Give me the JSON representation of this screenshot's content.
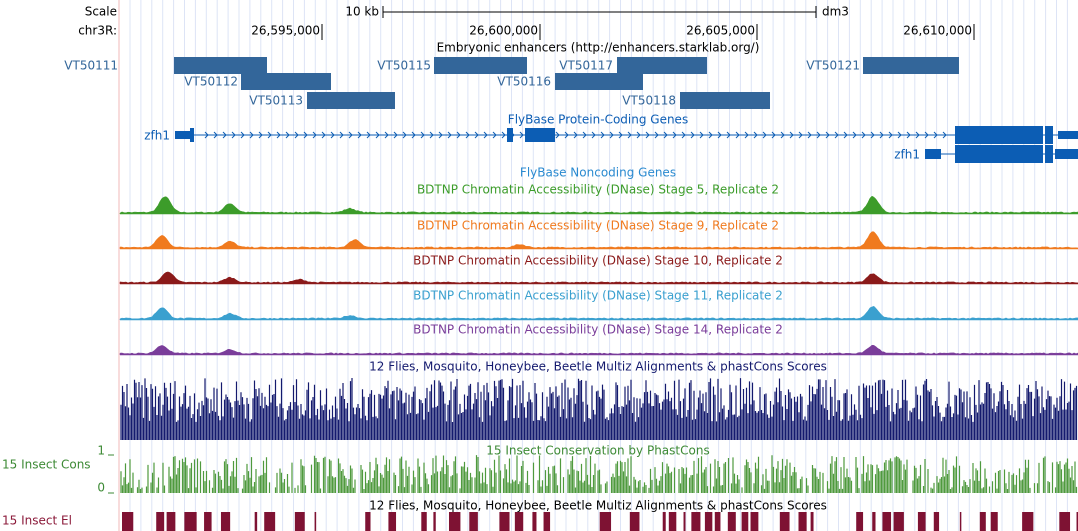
{
  "scale": {
    "label": "Scale",
    "size": "10 kb",
    "assembly": "dm3"
  },
  "position": {
    "chrom": "chr3R:",
    "ticks": [
      "26,595,000",
      "26,600,000",
      "26,605,000",
      "26,610,000"
    ]
  },
  "enhancers": {
    "title": "Embryonic enhancers (http://enhancers.starklab.org/)",
    "items": [
      "VT50111",
      "VT50112",
      "VT50113",
      "VT50115",
      "VT50116",
      "VT50117",
      "VT50118",
      "VT50121"
    ]
  },
  "genes": {
    "title": "FlyBase Protein-Coding Genes",
    "names": [
      "zfh1",
      "zfh1"
    ]
  },
  "noncoding": {
    "title": "FlyBase Noncoding Genes"
  },
  "dnase": [
    {
      "title": "BDTNP Chromatin Accessibility (DNase) Stage 5, Replicate 2"
    },
    {
      "title": "BDTNP Chromatin Accessibility (DNase) Stage 9, Replicate 2"
    },
    {
      "title": "BDTNP Chromatin Accessibility (DNase) Stage 10, Replicate 2"
    },
    {
      "title": "BDTNP Chromatin Accessibility (DNase) Stage 11, Replicate 2"
    },
    {
      "title": "BDTNP Chromatin Accessibility (DNase) Stage 14, Replicate 2"
    }
  ],
  "multiz": {
    "title": "12 Flies, Mosquito, Honeybee, Beetle Multiz Alignments & phastCons Scores"
  },
  "cons": {
    "label": "15 Insect Cons",
    "title": "15 Insect Conservation by PhastCons",
    "max": "1",
    "min": "0"
  },
  "elements": {
    "title": "12 Flies, Mosquito, Honeybee, Beetle Multiz Alignments & phastCons Scores",
    "label": "15 Insect El"
  }
}
